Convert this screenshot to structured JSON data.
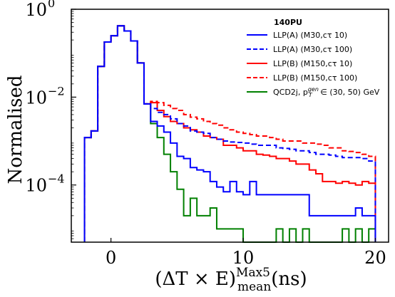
{
  "chart_data": {
    "type": "line",
    "style": "step-histogram",
    "yscale": "log",
    "xlim": [
      -3,
      21
    ],
    "ylim": [
      5e-06,
      1.0
    ],
    "xticks": [
      0,
      10,
      20
    ],
    "xtick_labels": [
      "0",
      "10",
      "20"
    ],
    "yticks": [
      1,
      0.01,
      0.0001
    ],
    "ytick_base": "10",
    "ytick_exponents": [
      "0",
      "−2",
      "−4"
    ],
    "ylabel": "Normalised",
    "xlabel": {
      "prefix": "(ΔT × E)",
      "sup": "Max5",
      "sub": "mean",
      "suffix": "(ns)"
    },
    "legend": {
      "title": "140PU",
      "placement": "top-right",
      "entries": [
        {
          "text": "LLP(A) (M30,cτ 10)",
          "color": "#0000ff",
          "dash": false
        },
        {
          "text": "LLP(A) (M30,cτ 100)",
          "color": "#0000ff",
          "dash": true
        },
        {
          "text": "LLP(B) (M150,cτ 10)",
          "color": "#ff0000",
          "dash": false
        },
        {
          "text": "LLP(B) (M150,cτ 100)",
          "color": "#ff0000",
          "dash": true
        },
        {
          "text": "QCD2j, p",
          "sup": "gen",
          "sub": "T",
          "tail": " ∈ (30, 50) GeV",
          "color": "#008000",
          "dash": false
        }
      ]
    },
    "bins": {
      "start": -2,
      "width": 0.5,
      "count": 44
    },
    "series": [
      {
        "name": "LLP(A) (M30,cτ 10)",
        "color": "#0000ff",
        "dash": false,
        "values": [
          0.0012,
          0.0017,
          0.05,
          0.18,
          0.25,
          0.42,
          0.32,
          0.19,
          0.06,
          0.007,
          0.0028,
          0.0022,
          0.0016,
          0.0009,
          0.00045,
          0.0004,
          0.00025,
          0.00022,
          0.0002,
          0.00012,
          9e-05,
          7e-05,
          0.00012,
          7e-05,
          6e-05,
          0.00012,
          6e-05,
          6e-05,
          6e-05,
          6e-05,
          6e-05,
          6e-05,
          6e-05,
          6e-05,
          2e-05,
          2e-05,
          2e-05,
          2e-05,
          2e-05,
          2e-05,
          2e-05,
          3e-05,
          2e-05,
          2e-05
        ]
      },
      {
        "name": "LLP(A) (M30,cτ 100)",
        "color": "#0000ff",
        "dash": true,
        "values": [
          0.0012,
          0.0017,
          0.05,
          0.18,
          0.25,
          0.42,
          0.32,
          0.19,
          0.06,
          0.007,
          0.0055,
          0.0045,
          0.004,
          0.0032,
          0.0025,
          0.0022,
          0.0017,
          0.0016,
          0.0015,
          0.0012,
          0.0011,
          0.001,
          0.00095,
          0.00093,
          0.0009,
          0.00085,
          0.0008,
          0.0008,
          0.0008,
          0.0007,
          0.00068,
          0.00065,
          0.0006,
          0.0006,
          0.00055,
          0.0005,
          0.0005,
          0.00048,
          0.00045,
          0.00042,
          0.00042,
          0.00042,
          0.0004,
          0.00035
        ]
      },
      {
        "name": "LLP(B) (M150,cτ 10)",
        "color": "#ff0000",
        "dash": false,
        "values": [
          0.0012,
          0.0017,
          0.05,
          0.18,
          0.25,
          0.42,
          0.32,
          0.19,
          0.06,
          0.007,
          0.0075,
          0.005,
          0.0036,
          0.0028,
          0.0025,
          0.002,
          0.0018,
          0.0016,
          0.0013,
          0.0012,
          0.0011,
          0.0008,
          0.0008,
          0.0007,
          0.0006,
          0.0006,
          0.0005,
          0.00048,
          0.00045,
          0.0004,
          0.0004,
          0.00035,
          0.0003,
          0.0003,
          0.00022,
          0.00018,
          0.00012,
          0.00012,
          0.00011,
          0.00012,
          0.00011,
          0.0001,
          0.00012,
          0.00011
        ]
      },
      {
        "name": "LLP(B) (M150,cτ 100)",
        "color": "#ff0000",
        "dash": true,
        "values": [
          0.0012,
          0.0017,
          0.05,
          0.18,
          0.25,
          0.42,
          0.32,
          0.19,
          0.06,
          0.007,
          0.008,
          0.0075,
          0.0065,
          0.0055,
          0.005,
          0.004,
          0.0035,
          0.0032,
          0.0028,
          0.0025,
          0.0023,
          0.002,
          0.0018,
          0.0016,
          0.0015,
          0.0014,
          0.0013,
          0.0013,
          0.0012,
          0.0011,
          0.001,
          0.001,
          0.001,
          0.0009,
          0.0009,
          0.00085,
          0.0008,
          0.0007,
          0.0007,
          0.0006,
          0.00058,
          0.00055,
          0.0005,
          0.00045
        ]
      },
      {
        "name": "QCD2j, pT gen ∈ (30, 50) GeV",
        "color": "#008000",
        "dash": false,
        "values": [
          0.0012,
          0.0017,
          0.05,
          0.18,
          0.25,
          0.42,
          0.32,
          0.19,
          0.06,
          0.007,
          0.0025,
          0.0012,
          0.0005,
          0.0002,
          8e-05,
          2e-05,
          5e-05,
          2e-05,
          2e-05,
          3e-05,
          1e-05,
          1e-05,
          1e-05,
          1e-05,
          5e-06,
          5e-06,
          5e-06,
          5e-06,
          5e-06,
          1e-05,
          5e-06,
          1e-05,
          5e-06,
          1e-05,
          5e-06,
          5e-06,
          5e-06,
          5e-06,
          5e-06,
          1e-05,
          5e-06,
          1e-05,
          5e-06,
          1e-05
        ]
      }
    ]
  }
}
